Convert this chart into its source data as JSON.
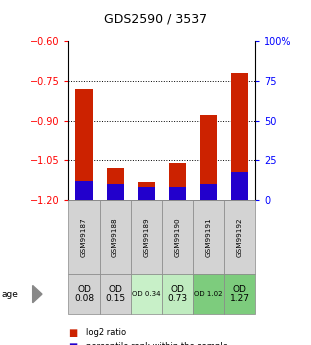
{
  "title": "GDS2590 / 3537",
  "samples": [
    "GSM99187",
    "GSM99188",
    "GSM99189",
    "GSM99190",
    "GSM99191",
    "GSM99192"
  ],
  "log2_ratio": [
    -0.78,
    -1.08,
    -1.13,
    -1.06,
    -0.88,
    -0.72
  ],
  "percentile_rank": [
    12,
    10,
    8,
    8,
    10,
    18
  ],
  "od_values": [
    "OD\n0.08",
    "OD\n0.15",
    "OD 0.34",
    "OD\n0.73",
    "OD 1.02",
    "OD\n1.27"
  ],
  "od_big": [
    true,
    true,
    false,
    true,
    false,
    true
  ],
  "cell_colors": [
    "#d3d3d3",
    "#d3d3d3",
    "#c8f0c8",
    "#c0ecc0",
    "#7dcc7d",
    "#7dcc7d"
  ],
  "ylim_left": [
    -1.2,
    -0.6
  ],
  "ylim_right": [
    0,
    100
  ],
  "yticks_left": [
    -1.2,
    -1.05,
    -0.9,
    -0.75,
    -0.6
  ],
  "yticks_right": [
    0,
    25,
    50,
    75,
    100
  ],
  "bar_color_red": "#cc2200",
  "bar_color_blue": "#2200cc",
  "background_color": "#ffffff"
}
